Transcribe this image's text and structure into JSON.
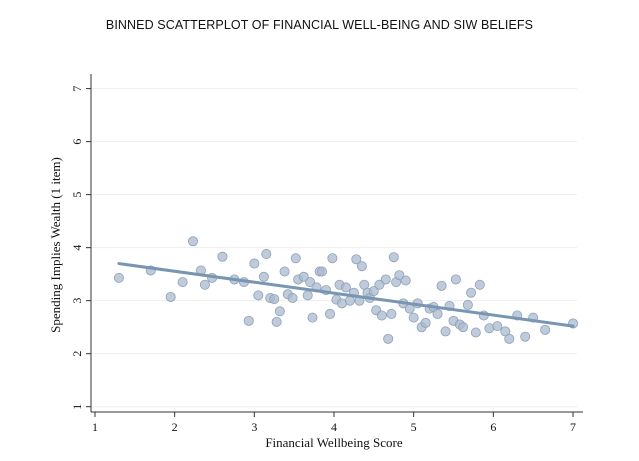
{
  "chart_data": {
    "type": "scatter",
    "title": "BINNED SCATTERPLOT OF FINANCIAL WELL-BEING AND SIW BELIEFS",
    "xlabel": "Financial Wellbeing Score",
    "ylabel": "Spending Implies Wealth (1 item)",
    "xlim": [
      0.95,
      7.05
    ],
    "ylim": [
      0.9,
      7.2
    ],
    "x_ticks": [
      "1",
      "2",
      "3",
      "4",
      "5",
      "6",
      "7"
    ],
    "y_ticks": [
      "1",
      "2",
      "3",
      "4",
      "5",
      "6",
      "7"
    ],
    "grid": true,
    "point_color": "#a9b9ce",
    "line_color": "#7895b2",
    "points": [
      [
        1.3,
        3.43
      ],
      [
        1.7,
        3.57
      ],
      [
        1.95,
        3.07
      ],
      [
        2.1,
        3.35
      ],
      [
        2.23,
        4.12
      ],
      [
        2.33,
        3.57
      ],
      [
        2.38,
        3.3
      ],
      [
        2.47,
        3.43
      ],
      [
        2.6,
        3.83
      ],
      [
        2.75,
        3.4
      ],
      [
        2.87,
        3.35
      ],
      [
        2.93,
        2.62
      ],
      [
        3.0,
        3.7
      ],
      [
        3.05,
        3.1
      ],
      [
        3.12,
        3.45
      ],
      [
        3.15,
        3.88
      ],
      [
        3.2,
        3.05
      ],
      [
        3.25,
        3.03
      ],
      [
        3.28,
        2.6
      ],
      [
        3.32,
        2.8
      ],
      [
        3.38,
        3.55
      ],
      [
        3.42,
        3.12
      ],
      [
        3.48,
        3.05
      ],
      [
        3.52,
        3.8
      ],
      [
        3.55,
        3.4
      ],
      [
        3.62,
        3.45
      ],
      [
        3.67,
        3.1
      ],
      [
        3.7,
        3.35
      ],
      [
        3.73,
        2.68
      ],
      [
        3.78,
        3.25
      ],
      [
        3.82,
        3.55
      ],
      [
        3.85,
        3.55
      ],
      [
        3.9,
        3.2
      ],
      [
        3.95,
        2.75
      ],
      [
        3.98,
        3.8
      ],
      [
        4.03,
        3.02
      ],
      [
        4.07,
        3.3
      ],
      [
        4.1,
        2.95
      ],
      [
        4.15,
        3.25
      ],
      [
        4.2,
        3.0
      ],
      [
        4.25,
        3.15
      ],
      [
        4.28,
        3.78
      ],
      [
        4.32,
        3.0
      ],
      [
        4.35,
        3.65
      ],
      [
        4.38,
        3.3
      ],
      [
        4.42,
        3.15
      ],
      [
        4.45,
        3.05
      ],
      [
        4.5,
        3.18
      ],
      [
        4.53,
        2.82
      ],
      [
        4.57,
        3.3
      ],
      [
        4.6,
        2.72
      ],
      [
        4.65,
        3.4
      ],
      [
        4.68,
        2.28
      ],
      [
        4.72,
        2.75
      ],
      [
        4.75,
        3.82
      ],
      [
        4.78,
        3.35
      ],
      [
        4.82,
        3.48
      ],
      [
        4.87,
        2.95
      ],
      [
        4.9,
        3.38
      ],
      [
        4.95,
        2.85
      ],
      [
        5.0,
        2.68
      ],
      [
        5.05,
        2.95
      ],
      [
        5.1,
        2.5
      ],
      [
        5.15,
        2.58
      ],
      [
        5.2,
        2.85
      ],
      [
        5.25,
        2.88
      ],
      [
        5.3,
        2.75
      ],
      [
        5.35,
        3.28
      ],
      [
        5.4,
        2.42
      ],
      [
        5.45,
        2.9
      ],
      [
        5.5,
        2.62
      ],
      [
        5.53,
        3.4
      ],
      [
        5.58,
        2.55
      ],
      [
        5.62,
        2.5
      ],
      [
        5.68,
        2.92
      ],
      [
        5.72,
        3.15
      ],
      [
        5.78,
        2.4
      ],
      [
        5.83,
        3.3
      ],
      [
        5.88,
        2.72
      ],
      [
        5.95,
        2.48
      ],
      [
        6.05,
        2.52
      ],
      [
        6.15,
        2.42
      ],
      [
        6.2,
        2.28
      ],
      [
        6.3,
        2.72
      ],
      [
        6.4,
        2.32
      ],
      [
        6.5,
        2.68
      ],
      [
        6.65,
        2.45
      ],
      [
        7.0,
        2.57
      ]
    ],
    "fit_line": {
      "x": [
        1.3,
        7.0
      ],
      "y": [
        3.7,
        2.52
      ]
    }
  }
}
